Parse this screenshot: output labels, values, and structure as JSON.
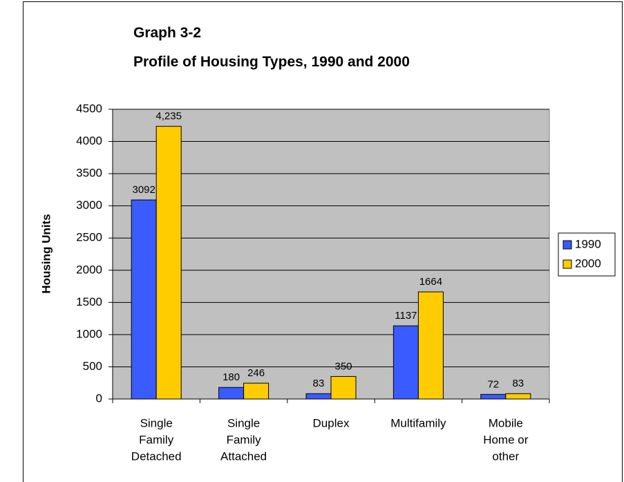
{
  "chart_data": {
    "type": "bar",
    "title": "Graph 3-2",
    "subtitle": "Profile of Housing Types, 1990 and 2000",
    "y_label": "Housing Units",
    "categories": [
      [
        "Single",
        "Family",
        "Detached"
      ],
      [
        "Single",
        "Family",
        "Attached"
      ],
      [
        "Duplex"
      ],
      [
        "Multifamily"
      ],
      [
        "Mobile",
        "Home or",
        "other"
      ]
    ],
    "series": [
      {
        "name": "1990",
        "color": "#3a5bff",
        "values": [
          3092,
          180,
          83,
          1137,
          72
        ]
      },
      {
        "name": "2000",
        "color": "#ffcc00",
        "values": [
          4235,
          246,
          350,
          1664,
          83
        ],
        "value_labels": [
          "4,235",
          "246",
          "350",
          "1664",
          "83"
        ]
      }
    ],
    "ylim": [
      0,
      4500
    ],
    "yticks": [
      0,
      500,
      1000,
      1500,
      2000,
      2500,
      3000,
      3500,
      4000,
      4500
    ],
    "grid": true,
    "legend": "right",
    "plot_background": "#c0c0c0"
  }
}
